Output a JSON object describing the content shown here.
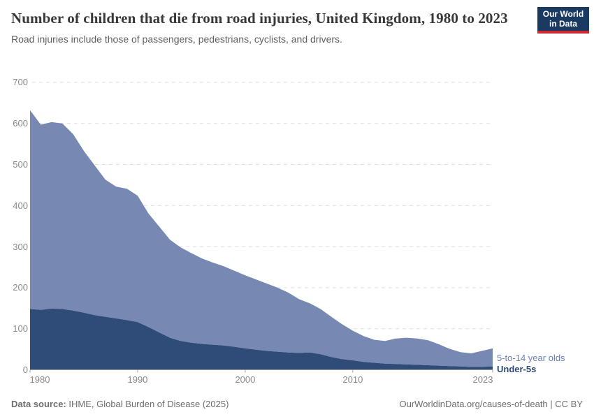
{
  "header": {
    "title": "Number of children that die from road injuries, United Kingdom, 1980 to 2023",
    "subtitle": "Road injuries include those of passengers, pedestrians, cyclists, and drivers."
  },
  "logo": {
    "line1": "Our World",
    "line2": "in Data",
    "bg_color": "#1a3a62",
    "accent_color": "#cf2a33"
  },
  "chart_data": {
    "type": "area",
    "stacked": true,
    "title": "Number of children that die from road injuries, United Kingdom, 1980 to 2023",
    "xlabel": "",
    "ylabel": "",
    "ylim": [
      0,
      700
    ],
    "y_ticks": [
      0,
      100,
      200,
      300,
      400,
      500,
      600,
      700
    ],
    "x_ticks": [
      1980,
      1990,
      2000,
      2010,
      2023
    ],
    "grid": "dashed-horizontal",
    "legend_position": "right-of-last-point",
    "years": [
      1980,
      1981,
      1982,
      1983,
      1984,
      1985,
      1986,
      1987,
      1988,
      1989,
      1990,
      1991,
      1992,
      1993,
      1994,
      1995,
      1996,
      1997,
      1998,
      1999,
      2000,
      2001,
      2002,
      2003,
      2004,
      2005,
      2006,
      2007,
      2008,
      2009,
      2010,
      2011,
      2012,
      2013,
      2014,
      2015,
      2016,
      2017,
      2018,
      2019,
      2020,
      2021,
      2022,
      2023
    ],
    "series": [
      {
        "name": "Under-5s",
        "color": "#2e4c77",
        "label_color": "#2d4a74",
        "values": [
          148,
          146,
          149,
          148,
          144,
          139,
          133,
          129,
          125,
          121,
          116,
          104,
          91,
          78,
          70,
          66,
          63,
          61,
          59,
          56,
          52,
          49,
          46,
          44,
          42,
          41,
          42,
          38,
          31,
          26,
          23,
          19,
          17,
          15,
          14,
          13,
          12,
          11,
          10,
          9,
          8,
          7,
          7,
          8
        ]
      },
      {
        "name": "5-to-14 year olds",
        "color": "#7789b3",
        "label_color": "#6b80b0",
        "values": [
          484,
          451,
          454,
          452,
          430,
          394,
          365,
          334,
          321,
          320,
          308,
          277,
          258,
          239,
          228,
          218,
          208,
          200,
          193,
          185,
          178,
          171,
          164,
          156,
          146,
          131,
          120,
          110,
          98,
          85,
          72,
          63,
          56,
          55,
          62,
          65,
          64,
          61,
          52,
          42,
          35,
          33,
          39,
          44
        ]
      }
    ],
    "axis_color": "#9b9b9b",
    "gridline_color": "#dddddd",
    "tick_label_color": "#898989"
  },
  "footer": {
    "source_label": "Data source:",
    "source_text": " IHME, Global Burden of Disease (2025)",
    "credit": "OurWorldinData.org/causes-of-death | CC BY"
  }
}
